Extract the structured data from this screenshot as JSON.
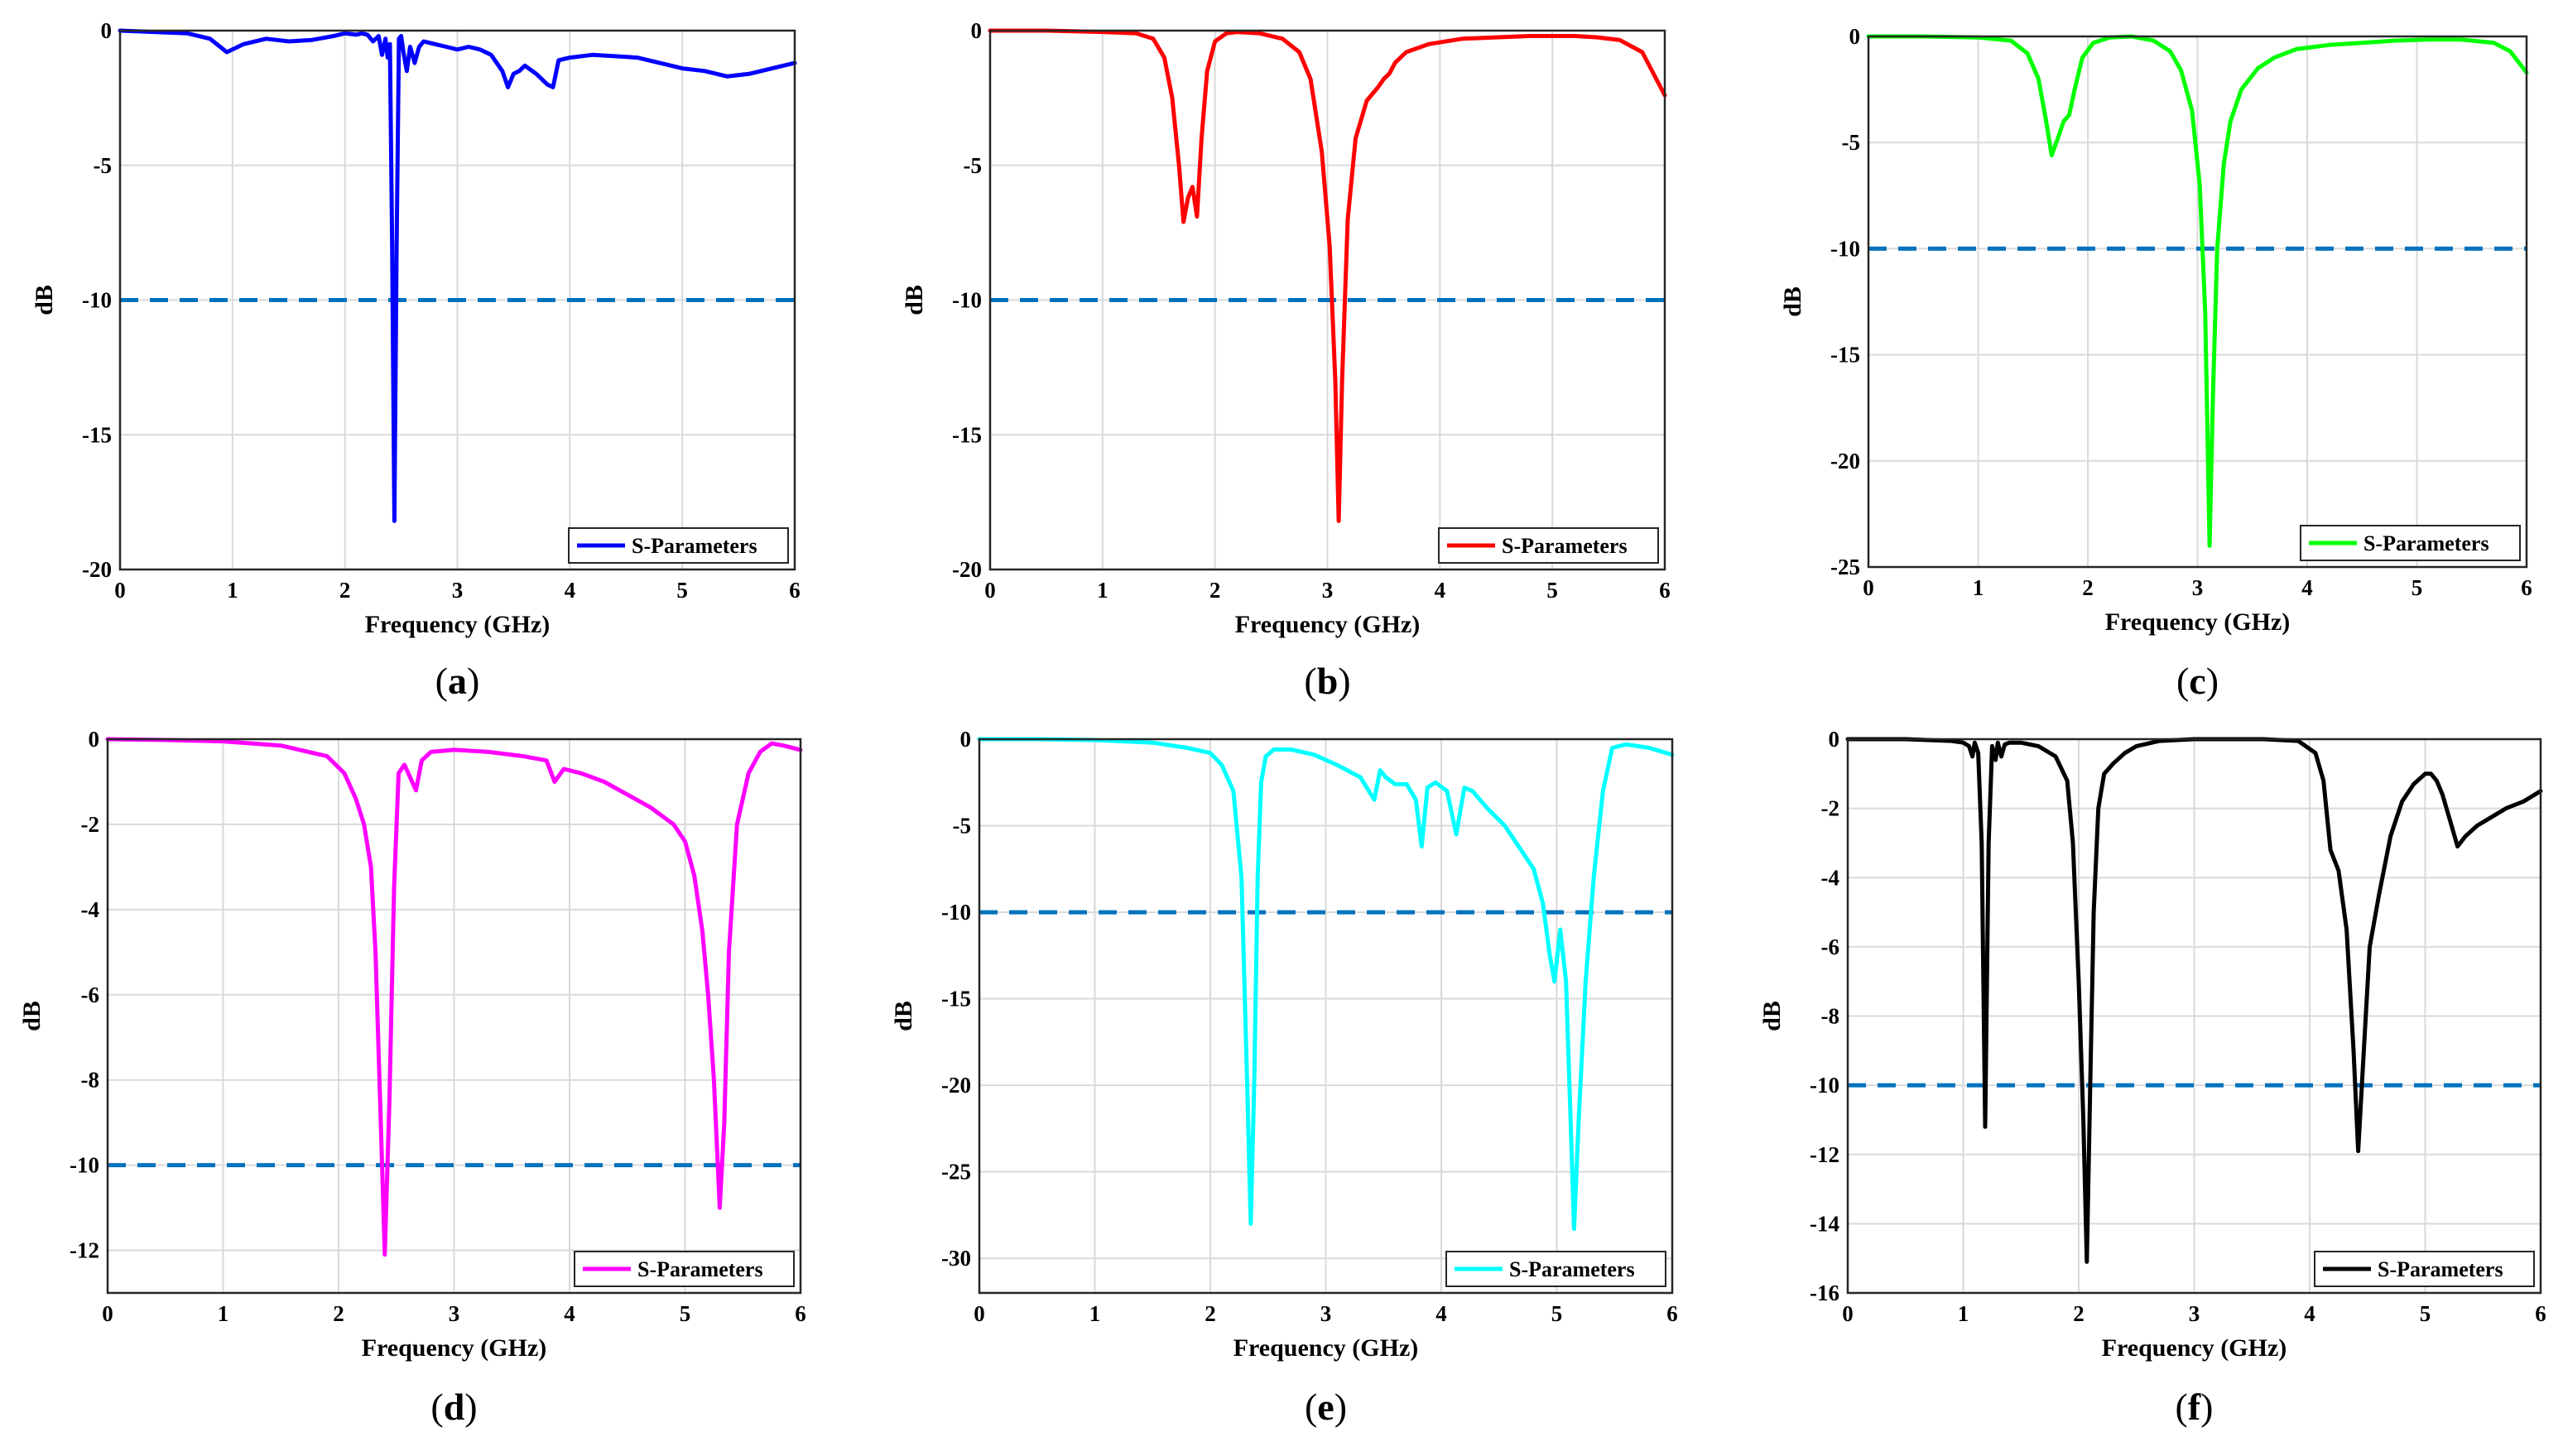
{
  "figure": {
    "panel_labels": [
      "a",
      "b",
      "c",
      "d",
      "e",
      "f"
    ]
  },
  "chart_data": [
    {
      "type": "line",
      "panel": "a",
      "color": "#0000ff",
      "xlabel": "Frequency (GHz)",
      "ylabel": "dB",
      "xlim": [
        0,
        6
      ],
      "ylim": [
        -20,
        0
      ],
      "xticks": [
        0,
        1,
        2,
        3,
        4,
        5,
        6
      ],
      "yticks": [
        0,
        -5,
        -10,
        -15,
        -20
      ],
      "threshold": -10,
      "legend": "S-Parameters",
      "legend_position": "bottom-right",
      "series": [
        {
          "name": "S-Parameters",
          "x": [
            0,
            0.3,
            0.6,
            0.8,
            0.95,
            1.1,
            1.3,
            1.5,
            1.7,
            1.9,
            2.0,
            2.1,
            2.15,
            2.2,
            2.25,
            2.3,
            2.33,
            2.36,
            2.38,
            2.4,
            2.42,
            2.44,
            2.46,
            2.48,
            2.5,
            2.52,
            2.55,
            2.58,
            2.62,
            2.66,
            2.7,
            2.8,
            2.9,
            3.0,
            3.1,
            3.2,
            3.3,
            3.4,
            3.45,
            3.5,
            3.55,
            3.6,
            3.7,
            3.8,
            3.85,
            3.9,
            4.0,
            4.2,
            4.4,
            4.6,
            4.8,
            5.0,
            5.2,
            5.4,
            5.6,
            5.8,
            6.0
          ],
          "y": [
            0,
            -0.05,
            -0.1,
            -0.3,
            -0.8,
            -0.5,
            -0.3,
            -0.4,
            -0.35,
            -0.2,
            -0.1,
            -0.15,
            -0.1,
            -0.15,
            -0.4,
            -0.2,
            -0.9,
            -0.3,
            -1.0,
            -0.5,
            -8.0,
            -18.2,
            -8.0,
            -0.3,
            -0.2,
            -0.8,
            -1.5,
            -0.6,
            -1.2,
            -0.6,
            -0.4,
            -0.5,
            -0.6,
            -0.7,
            -0.6,
            -0.7,
            -0.9,
            -1.5,
            -2.1,
            -1.6,
            -1.5,
            -1.3,
            -1.6,
            -2.0,
            -2.1,
            -1.1,
            -1.0,
            -0.9,
            -0.95,
            -1.0,
            -1.2,
            -1.4,
            -1.5,
            -1.7,
            -1.6,
            -1.4,
            -1.2
          ]
        }
      ]
    },
    {
      "type": "line",
      "panel": "b",
      "color": "#ff0000",
      "xlabel": "Frequency (GHz)",
      "ylabel": "dB",
      "xlim": [
        0,
        6
      ],
      "ylim": [
        -20,
        0
      ],
      "xticks": [
        0,
        1,
        2,
        3,
        4,
        5,
        6
      ],
      "yticks": [
        0,
        -5,
        -10,
        -15,
        -20
      ],
      "threshold": -10,
      "legend": "S-Parameters",
      "legend_position": "bottom-right",
      "series": [
        {
          "name": "S-Parameters",
          "x": [
            0,
            0.5,
            1.0,
            1.3,
            1.45,
            1.55,
            1.62,
            1.68,
            1.72,
            1.76,
            1.8,
            1.84,
            1.88,
            1.93,
            2.0,
            2.1,
            2.2,
            2.4,
            2.6,
            2.75,
            2.85,
            2.95,
            3.02,
            3.07,
            3.1,
            3.13,
            3.18,
            3.25,
            3.35,
            3.45,
            3.5,
            3.55,
            3.6,
            3.7,
            3.9,
            4.2,
            4.5,
            4.8,
            5.0,
            5.2,
            5.4,
            5.6,
            5.8,
            6.0
          ],
          "y": [
            0,
            0,
            -0.05,
            -0.1,
            -0.3,
            -1.0,
            -2.5,
            -5.0,
            -7.1,
            -6.2,
            -5.8,
            -6.9,
            -4.0,
            -1.5,
            -0.4,
            -0.1,
            -0.05,
            -0.1,
            -0.3,
            -0.8,
            -1.8,
            -4.5,
            -8.0,
            -13.0,
            -18.2,
            -13.0,
            -7.0,
            -4.0,
            -2.6,
            -2.1,
            -1.8,
            -1.6,
            -1.2,
            -0.8,
            -0.5,
            -0.3,
            -0.25,
            -0.2,
            -0.2,
            -0.2,
            -0.25,
            -0.35,
            -0.8,
            -2.4
          ]
        }
      ]
    },
    {
      "type": "line",
      "panel": "c",
      "color": "#00ff00",
      "xlabel": "Frequency (GHz)",
      "ylabel": "dB",
      "xlim": [
        0,
        6
      ],
      "ylim": [
        -25,
        0
      ],
      "xticks": [
        0,
        1,
        2,
        3,
        4,
        5,
        6
      ],
      "yticks": [
        0,
        -5,
        -10,
        -15,
        -20,
        -25
      ],
      "threshold": -10,
      "legend": "S-Parameters",
      "legend_position": "bottom-right",
      "series": [
        {
          "name": "S-Parameters",
          "x": [
            0,
            0.5,
            1.0,
            1.3,
            1.45,
            1.55,
            1.62,
            1.67,
            1.72,
            1.78,
            1.83,
            1.88,
            1.95,
            2.05,
            2.2,
            2.4,
            2.6,
            2.75,
            2.85,
            2.95,
            3.02,
            3.07,
            3.11,
            3.14,
            3.18,
            3.24,
            3.3,
            3.4,
            3.55,
            3.7,
            3.9,
            4.2,
            4.5,
            4.8,
            5.1,
            5.4,
            5.7,
            5.85,
            6.0
          ],
          "y": [
            0,
            0,
            -0.05,
            -0.2,
            -0.8,
            -2.0,
            -4.0,
            -5.6,
            -4.9,
            -4.0,
            -3.7,
            -2.5,
            -1.0,
            -0.3,
            -0.05,
            0,
            -0.2,
            -0.7,
            -1.6,
            -3.5,
            -7.0,
            -13.0,
            -24.0,
            -17.0,
            -10.0,
            -6.0,
            -4.0,
            -2.5,
            -1.5,
            -1.0,
            -0.6,
            -0.4,
            -0.3,
            -0.2,
            -0.15,
            -0.15,
            -0.3,
            -0.7,
            -1.7
          ]
        }
      ]
    },
    {
      "type": "line",
      "panel": "d",
      "color": "#ff00ff",
      "xlabel": "Frequency (GHz)",
      "ylabel": "dB",
      "xlim": [
        0,
        6
      ],
      "ylim": [
        -13,
        0
      ],
      "xticks": [
        0,
        1,
        2,
        3,
        4,
        5,
        6
      ],
      "yticks": [
        0,
        -2,
        -4,
        -6,
        -8,
        -10,
        -12
      ],
      "threshold": -10,
      "legend": "S-Parameters",
      "legend_position": "bottom-right",
      "series": [
        {
          "name": "S-Parameters",
          "x": [
            0,
            0.5,
            1.0,
            1.5,
            1.9,
            2.05,
            2.15,
            2.22,
            2.28,
            2.32,
            2.36,
            2.4,
            2.44,
            2.48,
            2.52,
            2.57,
            2.62,
            2.67,
            2.72,
            2.8,
            3.0,
            3.3,
            3.6,
            3.8,
            3.87,
            3.95,
            4.1,
            4.3,
            4.5,
            4.7,
            4.9,
            5.0,
            5.08,
            5.15,
            5.2,
            5.25,
            5.3,
            5.34,
            5.38,
            5.45,
            5.55,
            5.65,
            5.75,
            5.85,
            6.0
          ],
          "y": [
            0,
            -0.02,
            -0.05,
            -0.15,
            -0.4,
            -0.8,
            -1.4,
            -2.0,
            -3.0,
            -5.0,
            -8.5,
            -12.1,
            -8.5,
            -3.5,
            -0.8,
            -0.6,
            -0.9,
            -1.2,
            -0.5,
            -0.3,
            -0.25,
            -0.3,
            -0.4,
            -0.5,
            -1.0,
            -0.7,
            -0.8,
            -1.0,
            -1.3,
            -1.6,
            -2.0,
            -2.4,
            -3.2,
            -4.5,
            -6.0,
            -8.0,
            -11.0,
            -9.0,
            -5.0,
            -2.0,
            -0.8,
            -0.3,
            -0.1,
            -0.15,
            -0.25
          ]
        }
      ]
    },
    {
      "type": "line",
      "panel": "e",
      "color": "#00ffff",
      "xlabel": "Frequency (GHz)",
      "ylabel": "dB",
      "xlim": [
        0,
        6
      ],
      "ylim": [
        -32,
        0
      ],
      "xticks": [
        0,
        1,
        2,
        3,
        4,
        5,
        6
      ],
      "yticks": [
        0,
        -5,
        -10,
        -15,
        -20,
        -25,
        -30
      ],
      "threshold": -10,
      "legend": "S-Parameters",
      "legend_position": "bottom-right",
      "series": [
        {
          "name": "S-Parameters",
          "x": [
            0,
            0.5,
            1.0,
            1.5,
            1.8,
            2.0,
            2.1,
            2.2,
            2.27,
            2.32,
            2.35,
            2.38,
            2.41,
            2.44,
            2.48,
            2.55,
            2.7,
            2.9,
            3.1,
            3.3,
            3.42,
            3.47,
            3.52,
            3.6,
            3.7,
            3.78,
            3.83,
            3.88,
            3.95,
            4.05,
            4.13,
            4.2,
            4.27,
            4.4,
            4.55,
            4.7,
            4.8,
            4.88,
            4.94,
            4.98,
            5.03,
            5.08,
            5.12,
            5.15,
            5.19,
            5.25,
            5.32,
            5.4,
            5.48,
            5.6,
            5.8,
            6.0
          ],
          "y": [
            0,
            0,
            -0.05,
            -0.2,
            -0.5,
            -0.8,
            -1.5,
            -3.0,
            -8.0,
            -20.0,
            -28.0,
            -20.0,
            -8.0,
            -2.5,
            -1.0,
            -0.6,
            -0.6,
            -0.9,
            -1.5,
            -2.2,
            -3.5,
            -1.8,
            -2.2,
            -2.6,
            -2.6,
            -3.5,
            -6.2,
            -2.8,
            -2.5,
            -3.0,
            -5.5,
            -2.8,
            -3.0,
            -4.0,
            -5.0,
            -6.5,
            -7.5,
            -9.5,
            -12.5,
            -14.0,
            -11.0,
            -14.0,
            -22.0,
            -28.3,
            -22.0,
            -14.0,
            -8.0,
            -3.0,
            -0.5,
            -0.3,
            -0.5,
            -0.9
          ]
        }
      ]
    },
    {
      "type": "line",
      "panel": "f",
      "color": "#000000",
      "xlabel": "Frequency (GHz)",
      "ylabel": "dB",
      "xlim": [
        0,
        6
      ],
      "ylim": [
        -16,
        0
      ],
      "xticks": [
        0,
        1,
        2,
        3,
        4,
        5,
        6
      ],
      "yticks": [
        0,
        -2,
        -4,
        -6,
        -8,
        -10,
        -12,
        -14,
        -16
      ],
      "threshold": -10,
      "legend": "S-Parameters",
      "legend_position": "bottom-right",
      "series": [
        {
          "name": "S-Parameters",
          "x": [
            0,
            0.5,
            0.9,
            1.0,
            1.05,
            1.08,
            1.1,
            1.13,
            1.16,
            1.19,
            1.22,
            1.25,
            1.28,
            1.3,
            1.33,
            1.36,
            1.4,
            1.5,
            1.65,
            1.8,
            1.9,
            1.95,
            2.0,
            2.04,
            2.07,
            2.1,
            2.13,
            2.17,
            2.22,
            2.3,
            2.4,
            2.5,
            2.7,
            3.0,
            3.3,
            3.6,
            3.9,
            4.05,
            4.12,
            4.18,
            4.25,
            4.32,
            4.38,
            4.42,
            4.46,
            4.52,
            4.6,
            4.7,
            4.8,
            4.9,
            5.0,
            5.05,
            5.1,
            5.15,
            5.22,
            5.28,
            5.35,
            5.45,
            5.55,
            5.7,
            5.85,
            6.0
          ],
          "y": [
            0,
            0,
            -0.05,
            -0.1,
            -0.2,
            -0.5,
            -0.1,
            -0.4,
            -3.0,
            -11.2,
            -3.0,
            -0.2,
            -0.6,
            -0.1,
            -0.5,
            -0.15,
            -0.1,
            -0.1,
            -0.2,
            -0.5,
            -1.2,
            -3.0,
            -7.0,
            -11.0,
            -15.1,
            -10.0,
            -5.0,
            -2.0,
            -1.0,
            -0.7,
            -0.4,
            -0.2,
            -0.05,
            0,
            0,
            0,
            -0.05,
            -0.4,
            -1.2,
            -3.2,
            -3.8,
            -5.5,
            -9.0,
            -11.9,
            -9.5,
            -6.0,
            -4.5,
            -2.8,
            -1.8,
            -1.3,
            -1.0,
            -1.0,
            -1.2,
            -1.6,
            -2.4,
            -3.1,
            -2.8,
            -2.5,
            -2.3,
            -2.0,
            -1.8,
            -1.5
          ]
        }
      ]
    }
  ]
}
